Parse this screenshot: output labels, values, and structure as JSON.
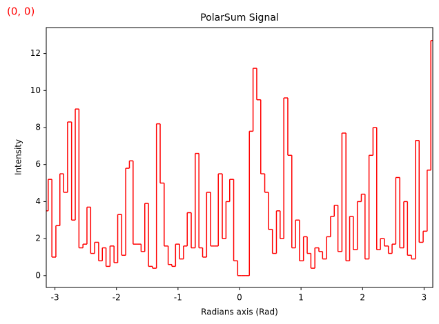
{
  "annotation": "(0, 0)",
  "chart_data": {
    "type": "step",
    "title": "PolarSum Signal",
    "x_label": "Radians axis (Rad)",
    "y_label": "Intensity",
    "color": "#ff0000",
    "xlim": [
      -3.1416,
      3.1416
    ],
    "ylim": [
      -0.64,
      13.4
    ],
    "xticks": [
      -3,
      -2,
      -1,
      0,
      1,
      2,
      3
    ],
    "yticks": [
      0,
      2,
      4,
      6,
      8,
      10,
      12
    ],
    "x": [
      -3.14,
      -3.08,
      -3.02,
      -2.95,
      -2.89,
      -2.83,
      -2.76,
      -2.7,
      -2.64,
      -2.58,
      -2.51,
      -2.45,
      -2.39,
      -2.32,
      -2.26,
      -2.2,
      -2.14,
      -2.07,
      -2.01,
      -1.95,
      -1.88,
      -1.82,
      -1.76,
      -1.7,
      -1.63,
      -1.57,
      -1.51,
      -1.45,
      -1.38,
      -1.32,
      -1.26,
      -1.19,
      -1.13,
      -1.07,
      -1.01,
      -0.94,
      -0.88,
      -0.82,
      -0.75,
      -0.69,
      -0.63,
      -0.57,
      -0.5,
      -0.44,
      -0.38,
      -0.31,
      -0.25,
      -0.19,
      -0.13,
      -0.06,
      0.0,
      0.06,
      0.13,
      0.19,
      0.25,
      0.31,
      0.38,
      0.44,
      0.5,
      0.57,
      0.63,
      0.69,
      0.75,
      0.82,
      0.88,
      0.94,
      1.01,
      1.07,
      1.13,
      1.19,
      1.26,
      1.32,
      1.38,
      1.45,
      1.51,
      1.57,
      1.63,
      1.7,
      1.76,
      1.82,
      1.88,
      1.95,
      2.01,
      2.07,
      2.14,
      2.2,
      2.26,
      2.32,
      2.39,
      2.45,
      2.51,
      2.57,
      2.64,
      2.7,
      2.76,
      2.83,
      2.89,
      2.95,
      3.02,
      3.08,
      3.14
    ],
    "values": [
      3.5,
      5.2,
      1.0,
      2.7,
      5.5,
      4.5,
      8.3,
      3.0,
      9.0,
      1.5,
      1.7,
      3.7,
      1.2,
      1.8,
      0.8,
      1.5,
      0.5,
      1.6,
      0.7,
      3.3,
      1.1,
      5.8,
      6.2,
      1.7,
      1.7,
      1.3,
      3.9,
      0.5,
      0.4,
      8.2,
      5.0,
      1.6,
      0.6,
      0.5,
      1.7,
      0.9,
      1.6,
      3.4,
      1.5,
      6.6,
      1.5,
      1.0,
      4.5,
      1.6,
      1.6,
      5.5,
      2.0,
      4.0,
      5.2,
      0.8,
      0.0,
      0.0,
      0.0,
      7.8,
      11.2,
      9.5,
      5.5,
      4.5,
      2.5,
      1.2,
      3.5,
      2.0,
      9.6,
      6.5,
      1.5,
      3.0,
      0.8,
      2.1,
      1.2,
      0.4,
      1.5,
      1.3,
      0.9,
      2.1,
      3.2,
      3.8,
      1.3,
      7.7,
      0.8,
      3.2,
      1.4,
      4.0,
      4.4,
      0.9,
      6.5,
      8.0,
      1.4,
      2.0,
      1.6,
      1.2,
      1.7,
      5.3,
      1.5,
      4.0,
      1.1,
      0.9,
      7.3,
      1.8,
      2.4,
      5.7,
      12.7
    ]
  }
}
